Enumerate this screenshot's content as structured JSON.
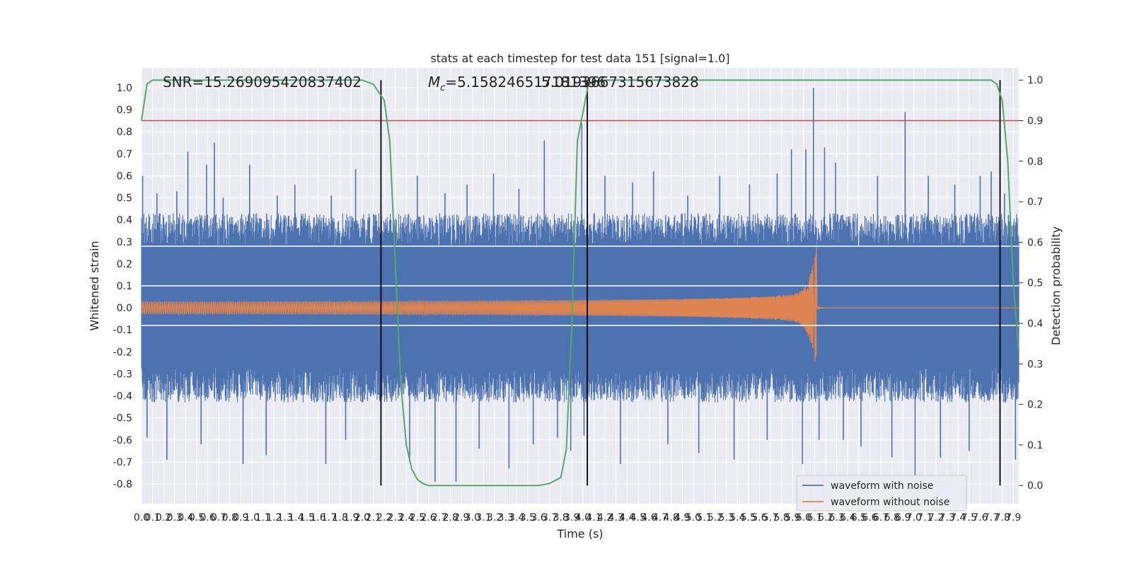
{
  "chart_data": {
    "type": "line",
    "title": "stats at each timestep for test data 151 [signal=1.0]",
    "xlabel": "Time (s)",
    "ylabel_left": "Whitened strain",
    "ylabel_right": "Detection probability",
    "xlim": [
      0.0,
      7.95
    ],
    "ylim_left": [
      -0.89,
      1.09
    ],
    "ylim_right": [
      -0.045,
      1.03
    ],
    "grid": true,
    "x_ticks": [
      0.0,
      0.1,
      0.2,
      0.3,
      0.4,
      0.5,
      0.6,
      0.7,
      0.8,
      0.9,
      1.0,
      1.1,
      1.2,
      1.3,
      1.4,
      1.5,
      1.6,
      1.7,
      1.8,
      1.9,
      2.0,
      2.1,
      2.2,
      2.3,
      2.4,
      2.5,
      2.6,
      2.7,
      2.8,
      2.9,
      3.0,
      3.1,
      3.2,
      3.3,
      3.4,
      3.5,
      3.6,
      3.7,
      3.8,
      3.9,
      4.0,
      4.1,
      4.2,
      4.3,
      4.4,
      4.5,
      4.6,
      4.7,
      4.8,
      4.9,
      5.0,
      5.1,
      5.2,
      5.3,
      5.4,
      5.5,
      5.6,
      5.7,
      5.8,
      5.9,
      6.0,
      6.1,
      6.2,
      6.3,
      6.4,
      6.5,
      6.6,
      6.7,
      6.8,
      6.9,
      7.0,
      7.1,
      7.2,
      7.3,
      7.4,
      7.5,
      7.6,
      7.7,
      7.8,
      7.9
    ],
    "y_ticks_left": [
      -0.8,
      -0.7,
      -0.6,
      -0.5,
      -0.4,
      -0.3,
      -0.2,
      -0.1,
      0.0,
      0.1,
      0.2,
      0.3,
      0.4,
      0.5,
      0.6,
      0.7,
      0.8,
      0.9,
      1.0
    ],
    "y_ticks_right": [
      0.0,
      0.1,
      0.2,
      0.3,
      0.4,
      0.5,
      0.6,
      0.7,
      0.8,
      0.9,
      1.0
    ],
    "legend_position": "lower-right",
    "series": [
      {
        "name": "waveform with noise",
        "color": "#4c72b0",
        "axis": "left",
        "envelope_band": [
          -0.27,
          0.27
        ],
        "spikes": [
          [
            0.01,
            0.6
          ],
          [
            0.05,
            -0.59
          ],
          [
            0.14,
            0.52
          ],
          [
            0.23,
            -0.69
          ],
          [
            0.32,
            0.53
          ],
          [
            0.42,
            0.71
          ],
          [
            0.54,
            -0.62
          ],
          [
            0.59,
            0.65
          ],
          [
            0.66,
            0.75
          ],
          [
            0.74,
            0.5
          ],
          [
            0.92,
            -0.71
          ],
          [
            0.98,
            0.65
          ],
          [
            1.13,
            -0.67
          ],
          [
            1.23,
            0.51
          ],
          [
            1.39,
            0.56
          ],
          [
            1.67,
            -0.71
          ],
          [
            1.72,
            0.51
          ],
          [
            1.85,
            -0.6
          ],
          [
            1.94,
            0.63
          ],
          [
            2.17,
            0.47
          ],
          [
            2.43,
            -0.7
          ],
          [
            2.5,
            0.6
          ],
          [
            2.66,
            -0.79
          ],
          [
            2.75,
            0.52
          ],
          [
            2.85,
            -0.79
          ],
          [
            2.95,
            0.56
          ],
          [
            3.06,
            -0.64
          ],
          [
            3.19,
            0.61
          ],
          [
            3.33,
            -0.73
          ],
          [
            3.42,
            0.54
          ],
          [
            3.55,
            -0.62
          ],
          [
            3.65,
            0.76
          ],
          [
            3.77,
            -0.59
          ],
          [
            3.89,
            -0.65
          ],
          [
            3.99,
            0.84
          ],
          [
            4.01,
            -0.58
          ],
          [
            4.2,
            0.6
          ],
          [
            4.34,
            -0.71
          ],
          [
            4.45,
            0.57
          ],
          [
            4.64,
            0.62
          ],
          [
            4.77,
            -0.62
          ],
          [
            4.95,
            0.51
          ],
          [
            5.05,
            -0.66
          ],
          [
            5.24,
            0.6
          ],
          [
            5.37,
            -0.69
          ],
          [
            5.51,
            0.56
          ],
          [
            5.67,
            -0.6
          ],
          [
            5.76,
            0.61
          ],
          [
            5.89,
            0.72
          ],
          [
            5.99,
            -0.71
          ],
          [
            6.02,
            0.72
          ],
          [
            6.09,
            1.0
          ],
          [
            6.14,
            -0.6
          ],
          [
            6.19,
            0.73
          ],
          [
            6.29,
            0.66
          ],
          [
            6.36,
            -0.6
          ],
          [
            6.52,
            -0.63
          ],
          [
            6.67,
            0.6
          ],
          [
            6.8,
            -0.68
          ],
          [
            6.92,
            0.89
          ],
          [
            7.01,
            -0.76
          ],
          [
            7.13,
            0.6
          ],
          [
            7.24,
            -0.68
          ],
          [
            7.37,
            0.56
          ],
          [
            7.5,
            -0.65
          ],
          [
            7.6,
            0.6
          ],
          [
            7.7,
            0.62
          ],
          [
            7.82,
            0.52
          ],
          [
            7.92,
            -0.69
          ]
        ]
      },
      {
        "name": "waveform without noise",
        "color": "#dd8452",
        "axis": "left",
        "chirp_start_amplitude": 0.027,
        "merger_time": 6.12,
        "merger_amplitude": 0.29
      },
      {
        "name": "",
        "color": "#55a868",
        "axis": "right",
        "x": [
          0.0,
          0.05,
          0.1,
          0.2,
          2.0,
          2.1,
          2.2,
          2.25,
          2.3,
          2.35,
          2.4,
          2.45,
          2.5,
          2.55,
          2.6,
          2.65,
          2.7,
          2.8,
          3.6,
          3.7,
          3.8,
          3.85,
          3.9,
          3.95,
          4.0,
          4.05,
          4.1,
          4.15,
          4.2,
          4.3,
          7.7,
          7.75,
          7.8,
          7.85,
          7.9,
          7.95
        ],
        "y": [
          0.9,
          0.99,
          1.0,
          1.0,
          1.0,
          0.99,
          0.95,
          0.85,
          0.55,
          0.25,
          0.1,
          0.04,
          0.015,
          0.005,
          0.0,
          0.0,
          0.0,
          0.0,
          0.0,
          0.005,
          0.02,
          0.09,
          0.4,
          0.85,
          0.92,
          0.99,
          0.995,
          1.0,
          1.0,
          1.0,
          1.0,
          0.99,
          0.95,
          0.8,
          0.5,
          0.33
        ]
      },
      {
        "name": "",
        "color": "#c44e52",
        "axis": "right",
        "constant": 0.9
      }
    ],
    "vertical_lines": [
      2.17,
      4.04,
      7.78
    ],
    "horizontal_lines_left": [
      -0.08,
      0.1,
      0.28
    ],
    "annotations": [
      "SNR=15.269095420837402",
      "$M_c$=5.158246517181396",
      "5.0193667315673828"
    ]
  },
  "legend": {
    "item1": "waveform with noise",
    "item2": "waveform without noise"
  }
}
